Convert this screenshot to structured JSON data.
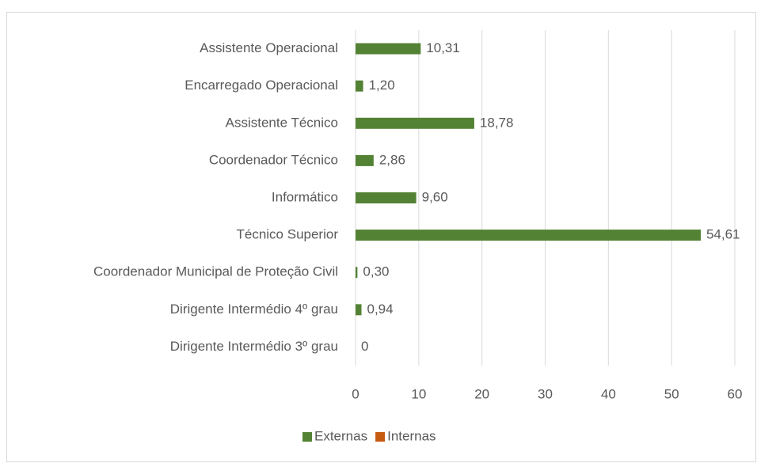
{
  "chart_data": {
    "type": "hbar",
    "categories": [
      "Assistente Operacional",
      "Encarregado Operacional",
      "Assistente Técnico",
      "Coordenador Técnico",
      "Informático",
      "Técnico Superior",
      "Coordenador Municipal de Proteção Civil",
      "Dirigente Intermédio 4º grau",
      "Dirigente Intermédio 3º grau"
    ],
    "series": [
      {
        "name": "Externas",
        "color": "#548235",
        "values": [
          10.31,
          1.2,
          18.78,
          2.86,
          9.6,
          54.61,
          0.3,
          0.94,
          0
        ],
        "value_labels": [
          "10,31",
          "1,20",
          "18,78",
          "2,86",
          "9,60",
          "54,61",
          "0,30",
          "0,94",
          "0"
        ]
      },
      {
        "name": "Internas",
        "color": "#c55a11",
        "values": [
          null,
          null,
          null,
          null,
          null,
          null,
          null,
          null,
          null
        ]
      }
    ],
    "xlim": [
      0,
      60
    ],
    "xticks": [
      0,
      10,
      20,
      30,
      40,
      50,
      60
    ],
    "grid": true,
    "legend": "bottom"
  }
}
